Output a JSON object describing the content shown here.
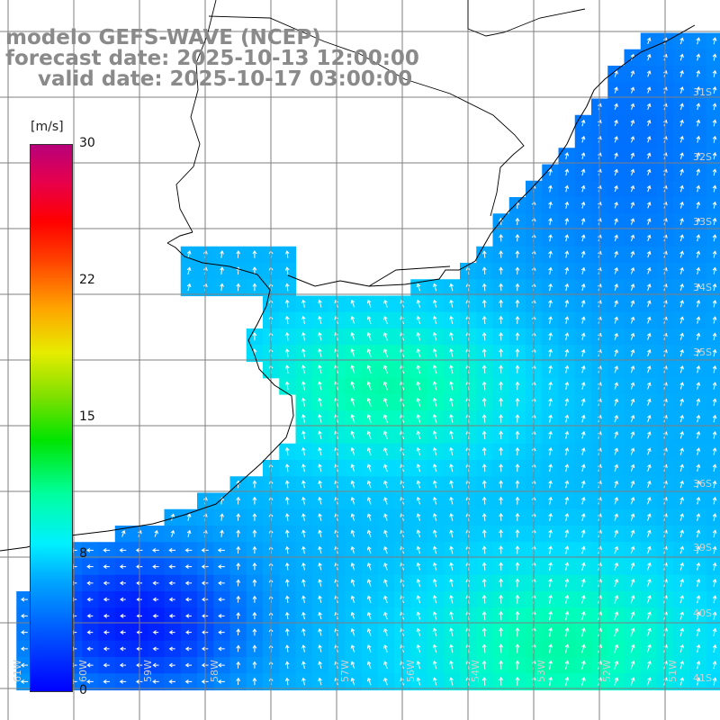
{
  "titles": {
    "model": "modelo GEFS-WAVE (NCEP)",
    "forecast": "forecast date: 2025-10-13 12:00:00",
    "valid": "valid date: 2025-10-17 03:00:00"
  },
  "colorbar": {
    "unit": "[m/s]",
    "min": 0,
    "max": 30,
    "ticks": [
      "30",
      "22",
      "15",
      "8",
      "0"
    ],
    "tick_values": [
      30,
      22,
      15,
      8,
      0
    ]
  },
  "grid_labels": {
    "lat": [
      "31S",
      "32S",
      "33S",
      "34S",
      "35S",
      "36S",
      "39S",
      "40S",
      "41S"
    ],
    "lon": [
      "61W",
      "60W",
      "59W",
      "58W",
      "57W",
      "56W",
      "54W",
      "53W",
      "52W",
      "51W"
    ]
  },
  "colors": {
    "background": "#ffffff",
    "coast": "#000000",
    "grid": "#7f7f7f",
    "arrows": "#ffffff",
    "title": "#8a8a8a"
  }
}
